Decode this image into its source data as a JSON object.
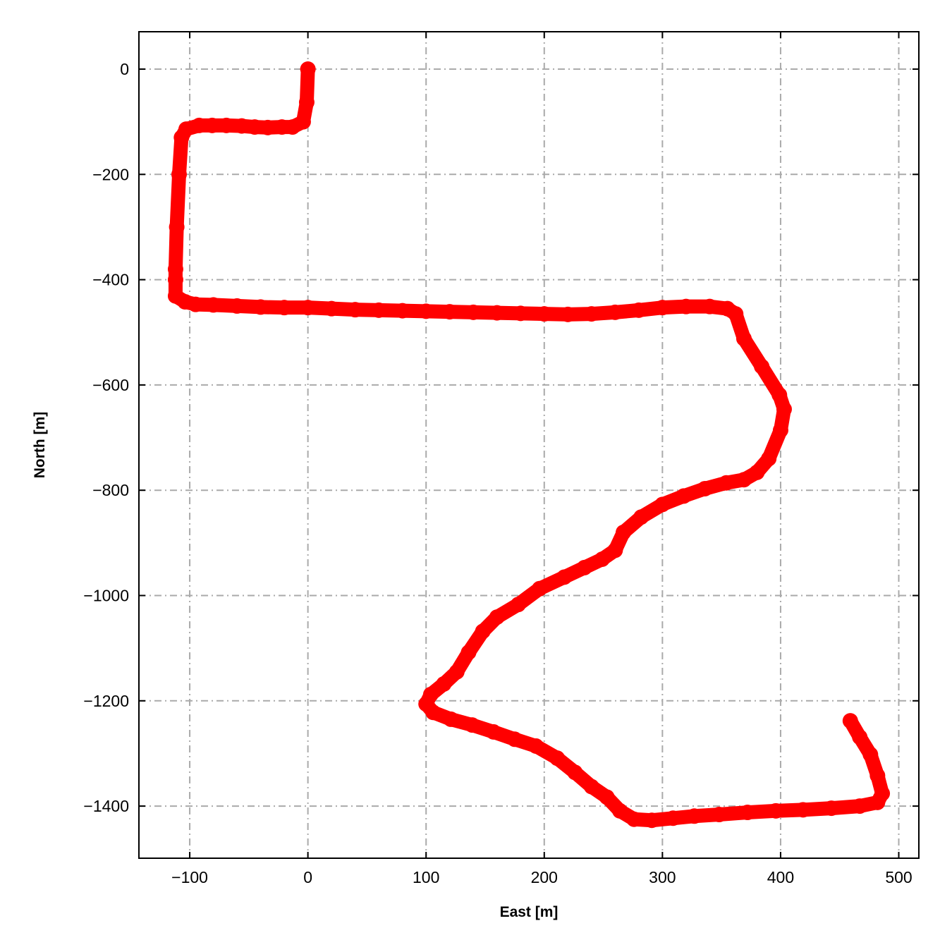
{
  "chart_data": {
    "type": "scatter",
    "title": "",
    "xlabel": "East [m]",
    "ylabel": "North [m]",
    "xlim": [
      -143,
      517
    ],
    "ylim": [
      -1499,
      71
    ],
    "xticks": [
      -100,
      0,
      100,
      200,
      300,
      400,
      500
    ],
    "yticks": [
      0,
      -200,
      -400,
      -600,
      -800,
      -1000,
      -1200,
      -1400
    ],
    "xtick_labels": [
      "−100",
      "0",
      "100",
      "200",
      "300",
      "400",
      "500"
    ],
    "ytick_labels": [
      "0",
      "−200",
      "−400",
      "−600",
      "−800",
      "−1000",
      "−1200",
      "−1400"
    ],
    "grid": true,
    "grid_style": "dash-dot",
    "grid_color": "#aaaaaa",
    "marker_color": "#ff0000",
    "series": [
      {
        "x": [
          0,
          -1,
          -4,
          -13,
          -22,
          -34,
          -45,
          -56,
          -69,
          -81,
          -92,
          -103,
          -107,
          -109,
          -111,
          -112,
          -112,
          -112,
          -104,
          -95,
          -80,
          -60,
          -40,
          -20,
          0,
          20,
          40,
          60,
          80,
          100,
          120,
          140,
          160,
          180,
          200,
          220,
          240,
          260,
          280,
          300,
          320,
          340,
          355,
          362,
          369,
          384,
          399,
          403,
          400,
          390,
          380,
          369,
          354,
          336,
          318,
          300,
          282,
          267,
          260,
          249,
          234,
          217,
          196,
          178,
          160,
          148,
          136,
          126,
          115,
          104,
          100,
          106,
          121,
          139,
          157,
          175,
          193,
          211,
          226,
          240,
          253,
          264,
          276,
          291,
          309,
          327,
          348,
          372,
          396,
          419,
          443,
          467,
          482,
          486,
          482,
          476,
          467,
          459
        ],
        "y": [
          0,
          -63,
          -100,
          -110,
          -110,
          -111,
          -110,
          -108,
          -107,
          -107,
          -107,
          -114,
          -130,
          -200,
          -300,
          -380,
          -400,
          -431,
          -442,
          -447,
          -448,
          -450,
          -452,
          -453,
          -453,
          -455,
          -457,
          -458,
          -459,
          -460,
          -461,
          -462,
          -463,
          -464,
          -465,
          -466,
          -465,
          -462,
          -458,
          -453,
          -451,
          -451,
          -455,
          -465,
          -512,
          -565,
          -619,
          -646,
          -686,
          -740,
          -766,
          -780,
          -786,
          -797,
          -811,
          -827,
          -851,
          -880,
          -914,
          -931,
          -947,
          -965,
          -987,
          -1017,
          -1041,
          -1068,
          -1108,
          -1145,
          -1168,
          -1188,
          -1206,
          -1222,
          -1235,
          -1246,
          -1259,
          -1273,
          -1286,
          -1309,
          -1336,
          -1363,
          -1383,
          -1409,
          -1425,
          -1427,
          -1423,
          -1419,
          -1416,
          -1412,
          -1409,
          -1407,
          -1404,
          -1400,
          -1393,
          -1376,
          -1342,
          -1302,
          -1269,
          -1238
        ]
      }
    ]
  }
}
